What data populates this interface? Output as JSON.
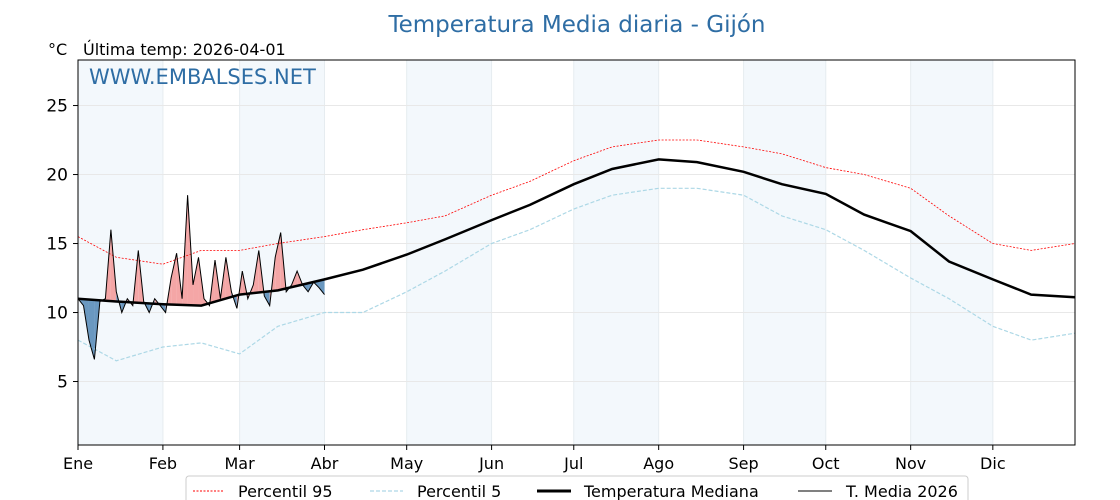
{
  "chart_data": {
    "type": "line",
    "title": "Temperatura Media diaria - Gijón",
    "ylabel": "°C",
    "subtitle": "Última temp: 2026-04-01",
    "watermark": "WWW.EMBALSES.NET",
    "ylim": [
      0.4,
      28.3
    ],
    "xlim": [
      1,
      365
    ],
    "yticks": [
      5,
      10,
      15,
      20,
      25
    ],
    "months": [
      {
        "label": "Ene",
        "day": 1
      },
      {
        "label": "Feb",
        "day": 32
      },
      {
        "label": "Mar",
        "day": 60
      },
      {
        "label": "Abr",
        "day": 91
      },
      {
        "label": "May",
        "day": 121
      },
      {
        "label": "Jun",
        "day": 152
      },
      {
        "label": "Jul",
        "day": 182
      },
      {
        "label": "Ago",
        "day": 213
      },
      {
        "label": "Sep",
        "day": 244
      },
      {
        "label": "Oct",
        "day": 274
      },
      {
        "label": "Nov",
        "day": 305
      },
      {
        "label": "Dic",
        "day": 335
      }
    ],
    "clim_days": [
      1,
      15,
      32,
      46,
      60,
      74,
      91,
      105,
      121,
      135,
      152,
      166,
      182,
      196,
      213,
      227,
      244,
      258,
      274,
      288,
      305,
      319,
      335,
      349,
      365
    ],
    "series": [
      {
        "name": "Percentil 95",
        "color": "#ff0000",
        "values": [
          15.5,
          14,
          13.5,
          14.5,
          14.5,
          15,
          15.5,
          16,
          16.5,
          17,
          18.5,
          19.5,
          21,
          22,
          22.5,
          22.5,
          22,
          21.5,
          20.5,
          20,
          19,
          17,
          15,
          14.5,
          15
        ]
      },
      {
        "name": "Percentil 5",
        "color": "#add8e6",
        "values": [
          8,
          6.5,
          7.5,
          7.8,
          7,
          9,
          10,
          10,
          11.5,
          13,
          15,
          16,
          17.5,
          18.5,
          19,
          19,
          18.5,
          17,
          16,
          14.5,
          12.5,
          11,
          9,
          8,
          8.5
        ]
      },
      {
        "name": "Temperatura Mediana",
        "color": "#000000",
        "values": [
          11,
          10.8,
          10.6,
          10.5,
          11.3,
          11.6,
          12.4,
          13.1,
          14.2,
          15.3,
          16.7,
          17.8,
          19.3,
          20.4,
          21.1,
          20.9,
          20.2,
          19.3,
          18.6,
          17.1,
          15.9,
          13.7,
          12.4,
          11.3,
          11.1
        ]
      },
      {
        "name": "T. Media 2026",
        "color": "#000000",
        "days": [
          1,
          3,
          5,
          7,
          9,
          11,
          13,
          15,
          17,
          19,
          21,
          23,
          25,
          27,
          29,
          31,
          33,
          35,
          37,
          39,
          41,
          43,
          45,
          47,
          49,
          51,
          53,
          55,
          57,
          59,
          61,
          63,
          65,
          67,
          69,
          71,
          73,
          75,
          77,
          79,
          81,
          83,
          85,
          87,
          89,
          91
        ],
        "values": [
          11,
          10.5,
          8,
          6.6,
          10.8,
          11,
          16,
          11.5,
          10,
          11,
          10.5,
          14.5,
          10.8,
          10,
          11,
          10.5,
          10,
          12.5,
          14.3,
          11,
          18.5,
          12,
          14,
          11,
          10.5,
          13.8,
          11,
          14,
          11.5,
          10.3,
          13,
          11,
          12,
          14.5,
          11.2,
          10.5,
          14,
          15.8,
          11.5,
          12,
          13,
          12,
          11.5,
          12.2,
          11.8,
          11.3
        ]
      }
    ],
    "fill_above_color": "#f4a6a6",
    "fill_below_color": "#6a98c0"
  }
}
